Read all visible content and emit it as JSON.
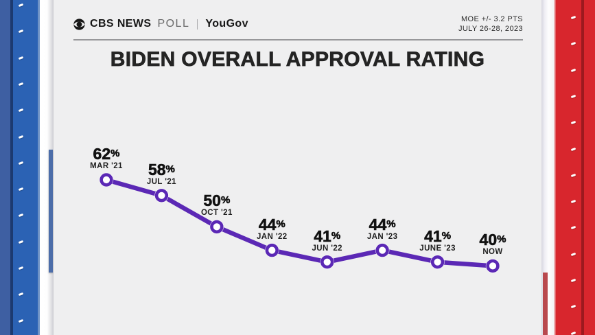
{
  "header": {
    "brand": {
      "cbs_news": "CBS NEWS",
      "poll": "POLL",
      "partner": "YouGov"
    },
    "moe_line1": "MOE +/- 3.2 PTS",
    "moe_line2": "JULY 26-28, 2023"
  },
  "title": "BIDEN OVERALL APPROVAL RATING",
  "chart_data": {
    "type": "line",
    "title": "BIDEN OVERALL APPROVAL RATING",
    "categories": [
      "MAR '21",
      "JUL '21",
      "OCT '21",
      "JAN '22",
      "JUN '22",
      "JAN '23",
      "JUNE '23",
      "NOW"
    ],
    "values": [
      62,
      58,
      50,
      44,
      41,
      44,
      41,
      40
    ],
    "unit": "%",
    "ylim": [
      38,
      64
    ],
    "grid": false,
    "legend": "none",
    "value_labels": "above-points",
    "line_color": "#5b28b5",
    "marker": "open-circle",
    "marker_fill": "#ffffff"
  },
  "colors": {
    "card_background": "#efeff0",
    "stripe_left_blue": "#2b62b4",
    "stripe_right_red": "#d8262d",
    "accent_purple": "#5b28b5",
    "title_text": "#242424"
  }
}
